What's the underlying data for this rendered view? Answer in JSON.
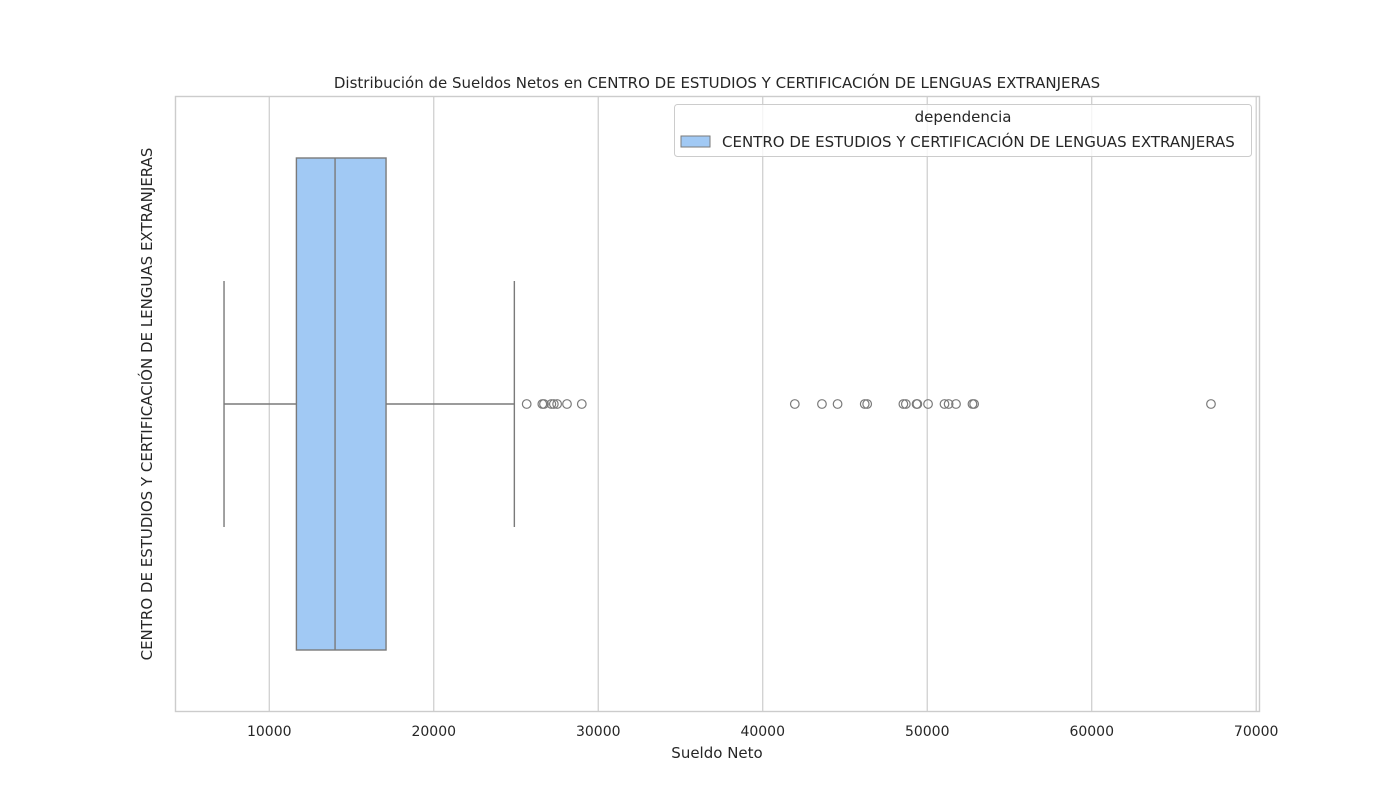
{
  "chart_data": {
    "type": "box",
    "title": "Distribución de Sueldos Netos en CENTRO DE ESTUDIOS Y CERTIFICACIÓN DE LENGUAS EXTRANJERAS",
    "xlabel": "Sueldo Neto",
    "ylabel": "CENTRO DE ESTUDIOS Y CERTIFICACIÓN DE LENGUAS EXTRANJERAS",
    "xlim": [
      4300,
      70200
    ],
    "xticks": [
      10000,
      20000,
      30000,
      40000,
      50000,
      60000,
      70000
    ],
    "grid": "vertical",
    "legend": {
      "title": "dependencia",
      "position": "top-right",
      "entries": [
        "CENTRO DE ESTUDIOS Y CERTIFICACIÓN DE LENGUAS EXTRANJERAS"
      ]
    },
    "box_color": "#a1c9f4",
    "line_color": "#7a7a7a",
    "box": {
      "category": "CENTRO DE ESTUDIOS Y CERTIFICACIÓN DE LENGUAS EXTRANJERAS",
      "whisker_low": 7250,
      "q1": 11650,
      "median": 14000,
      "q3": 17100,
      "whisker_high": 24900,
      "outliers": [
        25650,
        26600,
        26700,
        27150,
        27300,
        27500,
        28100,
        29000,
        41950,
        43600,
        44550,
        46200,
        46350,
        48550,
        48700,
        49350,
        49400,
        50050,
        51050,
        51300,
        51750,
        52750,
        52850,
        67250
      ]
    }
  }
}
